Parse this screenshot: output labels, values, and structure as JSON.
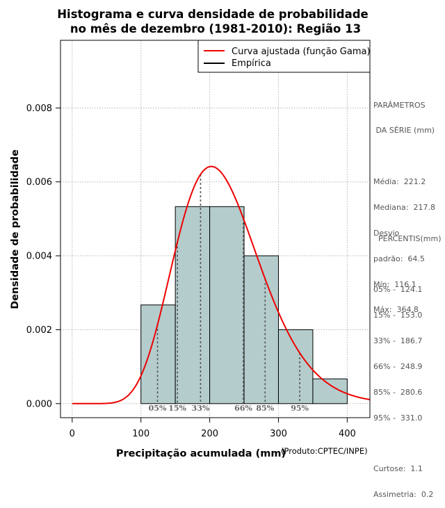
{
  "chart_data": {
    "type": "histogram",
    "title_line1": "Histograma e curva densidade de probabilidade",
    "title_line2": "no mês de dezembro (1981-2010): Região 13",
    "xlabel": "Precipitação acumulada (mm)",
    "ylabel": "Densidade de probabilidade",
    "source_note": "(Produto:CPTEC/INPE)",
    "xlim": [
      -17,
      433
    ],
    "ylim": [
      -0.00038,
      0.00983
    ],
    "x_ticks": [
      0,
      100,
      200,
      300,
      400
    ],
    "y_ticks": [
      0.0,
      0.002,
      0.004,
      0.006,
      0.008
    ],
    "y_tick_labels": [
      "0.000",
      "0.002",
      "0.004",
      "0.006",
      "0.008"
    ],
    "grid": true,
    "bins": [
      {
        "from": 100,
        "to": 150,
        "density": 0.00267
      },
      {
        "from": 150,
        "to": 200,
        "density": 0.00533
      },
      {
        "from": 200,
        "to": 250,
        "density": 0.00533
      },
      {
        "from": 250,
        "to": 300,
        "density": 0.004
      },
      {
        "from": 300,
        "to": 350,
        "density": 0.002
      },
      {
        "from": 350,
        "to": 400,
        "density": 0.00067
      }
    ],
    "bar_color": "#b4cccc",
    "curve": {
      "name": "Curva ajustada (função Gama)",
      "color": "#ee0000",
      "distribution": "gamma",
      "mean": 221.2,
      "sd": 64.5,
      "x_from": 0,
      "x_to": 433
    },
    "legend": [
      {
        "label": "Curva ajustada (função Gama)",
        "color": "#ee0000"
      },
      {
        "label": "Empírica",
        "color": "#000000"
      }
    ],
    "legend_position": "top-right",
    "percentile_lines": [
      {
        "label": "05%",
        "x": 124.1
      },
      {
        "label": "15%",
        "x": 153.0
      },
      {
        "label": "33%",
        "x": 186.7
      },
      {
        "label": "66%",
        "x": 248.9
      },
      {
        "label": "85%",
        "x": 280.6
      },
      {
        "label": "95%",
        "x": 331.0
      }
    ]
  },
  "side_panel": {
    "params_heading_1": "PARÂMETROS",
    "params_heading_2": " DA SÉRIE (mm)",
    "stats": [
      "Média:  221.2",
      "Mediana:  217.8",
      "Desvio",
      "padrão:  64.5",
      "Mín:  116.1",
      "Máx:  364.8"
    ],
    "percentis_heading": "  PERCENTIS(mm)",
    "percentis": [
      "05% -  124.1",
      "15% -  153.0",
      "33% -  186.7",
      "66% -  248.9",
      "85% -  280.6",
      "95% -  331.0"
    ],
    "curtose": "Curtose:  1.1",
    "assimetria": "Assimetria:  0.2"
  }
}
